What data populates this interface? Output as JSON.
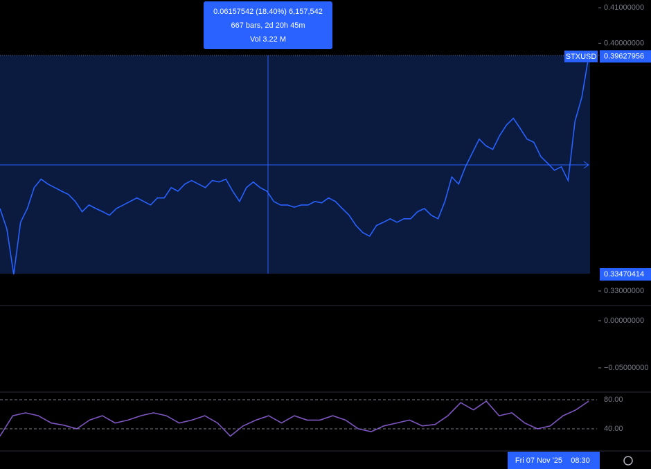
{
  "chart_data": [
    {
      "type": "line",
      "symbol": "STXUSD",
      "color": "#2962ff",
      "values": [
        0.3533,
        0.3475,
        0.33470414,
        0.3494,
        0.3533,
        0.3592,
        0.3616,
        0.3602,
        0.3592,
        0.3582,
        0.3573,
        0.3553,
        0.3524,
        0.3543,
        0.3533,
        0.3524,
        0.3514,
        0.3533,
        0.3543,
        0.3553,
        0.3563,
        0.3553,
        0.3543,
        0.3563,
        0.3563,
        0.3592,
        0.3582,
        0.3602,
        0.3612,
        0.3602,
        0.3592,
        0.3612,
        0.3608,
        0.3616,
        0.3582,
        0.3553,
        0.3592,
        0.3608,
        0.3592,
        0.3582,
        0.3553,
        0.3543,
        0.3543,
        0.3537,
        0.3543,
        0.3543,
        0.3553,
        0.3549,
        0.3563,
        0.3553,
        0.3533,
        0.3514,
        0.3485,
        0.3465,
        0.3455,
        0.3485,
        0.3494,
        0.3504,
        0.3494,
        0.3504,
        0.3504,
        0.3524,
        0.3533,
        0.3514,
        0.3504,
        0.3553,
        0.3622,
        0.3602,
        0.3651,
        0.369,
        0.3729,
        0.371,
        0.37,
        0.3739,
        0.3769,
        0.3788,
        0.3759,
        0.3729,
        0.372,
        0.368,
        0.3661,
        0.3641,
        0.3651,
        0.3612,
        0.3779,
        0.3847,
        0.39627956
      ],
      "ylim": [
        0.3261,
        0.4122
      ],
      "yticks": [
        {
          "value": 0.33,
          "label": "0.33000000"
        },
        {
          "value": 0.4,
          "label": "0.40000000"
        },
        {
          "value": 0.41,
          "label": "0.41000000"
        }
      ],
      "price_labels": [
        0.39627956,
        0.33470414
      ],
      "tooltip": [
        "0.06157542 (18.40%) 6,157,542",
        "667 bars, 2d 20h 45m",
        "Vol 3.22 M"
      ],
      "crosshair_date": "Fri 07 Nov '25",
      "crosshair_time": "08:30"
    },
    {
      "type": "pane",
      "ylim": [
        -0.075,
        0.0154
      ],
      "yticks": [
        {
          "value": 0,
          "label": "0.00000000"
        },
        {
          "value": -0.05,
          "label": "−0.05000000"
        }
      ]
    },
    {
      "type": "line",
      "color": "#7e57c2",
      "values": [
        30,
        58,
        62,
        58,
        48,
        45,
        40,
        52,
        58,
        48,
        52,
        58,
        62,
        58,
        48,
        52,
        58,
        48,
        30,
        44,
        52,
        58,
        48,
        58,
        52,
        52,
        58,
        52,
        40,
        36,
        44,
        48,
        52,
        44,
        46,
        58,
        76,
        66,
        78,
        58,
        62,
        48,
        40,
        44,
        58,
        66,
        78
      ],
      "ylim": [
        10.5,
        89.5
      ],
      "yticks": [
        {
          "value": 80,
          "label": "80.00"
        },
        {
          "value": 40,
          "label": "40.00"
        }
      ]
    }
  ]
}
